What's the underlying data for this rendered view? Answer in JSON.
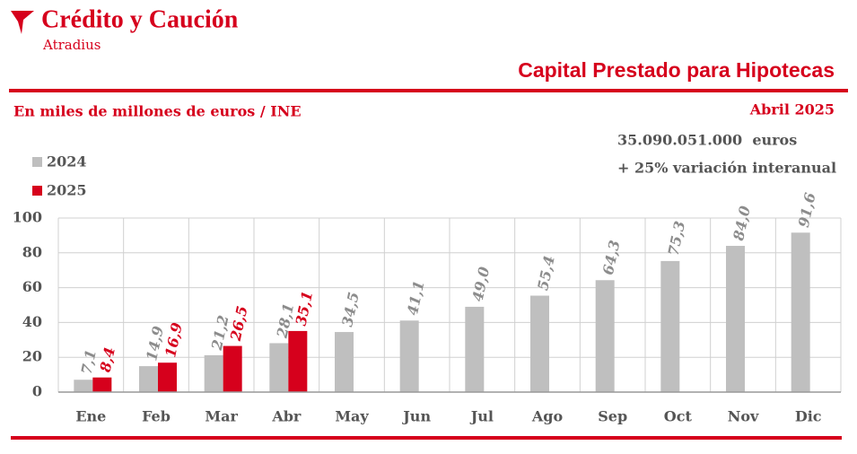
{
  "brand": "Crédito y Caución",
  "brand_sub": "Atradius",
  "chart_data": {
    "type": "bar",
    "title": "Capital Prestado para Hipotecas",
    "subtitle": "En miles de millones de euros / INE",
    "date": "Abril 2025",
    "annotations": [
      "35.090.051.000  euros",
      "+ 25% variación interanual"
    ],
    "categories": [
      "Ene",
      "Feb",
      "Mar",
      "Abr",
      "May",
      "Jun",
      "Jul",
      "Ago",
      "Sep",
      "Oct",
      "Nov",
      "Dic"
    ],
    "series": [
      {
        "name": "2024",
        "color": "#bfbfbf",
        "label_color": "#8c8c8c",
        "values": [
          7.1,
          14.9,
          21.2,
          28.1,
          34.5,
          41.1,
          49.0,
          55.4,
          64.3,
          75.3,
          84.0,
          91.6
        ],
        "value_labels": [
          "7,1",
          "14,9",
          "21,2",
          "28,1",
          "34,5",
          "41,1",
          "49,0",
          "55,4",
          "64,3",
          "75,3",
          "84,0",
          "91,6"
        ]
      },
      {
        "name": "2025",
        "color": "#d6001c",
        "label_color": "#d6001c",
        "values": [
          8.4,
          16.9,
          26.5,
          35.1,
          null,
          null,
          null,
          null,
          null,
          null,
          null,
          null
        ],
        "value_labels": [
          "8,4",
          "16,9",
          "26,5",
          "35,1",
          null,
          null,
          null,
          null,
          null,
          null,
          null,
          null
        ]
      }
    ],
    "ylim": [
      0,
      100
    ],
    "yticks": [
      0,
      20,
      40,
      60,
      80,
      100
    ],
    "grid": true
  }
}
